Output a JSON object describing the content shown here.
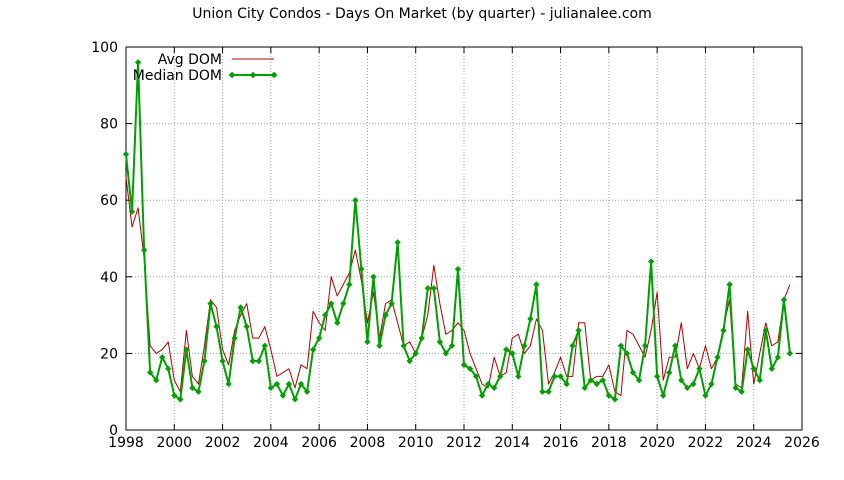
{
  "chart_data": {
    "type": "line",
    "title": "Union City Condos - Days On Market (by quarter) - julianalee.com",
    "xlabel": "",
    "ylabel": "",
    "xlim": [
      1998,
      2026
    ],
    "ylim": [
      0,
      100
    ],
    "x_ticks": [
      "1998",
      "2000",
      "2002",
      "2004",
      "2006",
      "2008",
      "2010",
      "2012",
      "2014",
      "2016",
      "2018",
      "2020",
      "2022",
      "2024",
      "2026"
    ],
    "y_ticks": [
      "0",
      "20",
      "40",
      "60",
      "80",
      "100"
    ],
    "grid": true,
    "legend_position": "top-left",
    "series": [
      {
        "name": "Avg DOM",
        "color": "#b00000",
        "marker": "none",
        "values": [
          [
            1998.0,
            66
          ],
          [
            1998.25,
            53
          ],
          [
            1998.5,
            58
          ],
          [
            1998.75,
            45
          ],
          [
            1999.0,
            22
          ],
          [
            1999.25,
            20
          ],
          [
            1999.5,
            21
          ],
          [
            1999.75,
            23
          ],
          [
            2000.0,
            13
          ],
          [
            2000.25,
            10
          ],
          [
            2000.5,
            26
          ],
          [
            2000.75,
            14
          ],
          [
            2001.0,
            12
          ],
          [
            2001.25,
            22
          ],
          [
            2001.5,
            34
          ],
          [
            2001.75,
            32
          ],
          [
            2002.0,
            21
          ],
          [
            2002.25,
            17
          ],
          [
            2002.5,
            26
          ],
          [
            2002.75,
            30
          ],
          [
            2003.0,
            33
          ],
          [
            2003.25,
            24
          ],
          [
            2003.5,
            24
          ],
          [
            2003.75,
            27
          ],
          [
            2004.0,
            21
          ],
          [
            2004.25,
            14
          ],
          [
            2004.5,
            15
          ],
          [
            2004.75,
            16
          ],
          [
            2005.0,
            11
          ],
          [
            2005.25,
            17
          ],
          [
            2005.5,
            16
          ],
          [
            2005.75,
            31
          ],
          [
            2006.0,
            28
          ],
          [
            2006.25,
            26
          ],
          [
            2006.5,
            40
          ],
          [
            2006.75,
            35
          ],
          [
            2007.0,
            38
          ],
          [
            2007.25,
            41
          ],
          [
            2007.5,
            47
          ],
          [
            2007.75,
            39
          ],
          [
            2008.0,
            28
          ],
          [
            2008.25,
            36
          ],
          [
            2008.5,
            24
          ],
          [
            2008.75,
            33
          ],
          [
            2009.0,
            34
          ],
          [
            2009.25,
            28
          ],
          [
            2009.5,
            22
          ],
          [
            2009.75,
            23
          ],
          [
            2010.0,
            20
          ],
          [
            2010.25,
            24
          ],
          [
            2010.5,
            30
          ],
          [
            2010.75,
            43
          ],
          [
            2011.0,
            33
          ],
          [
            2011.25,
            25
          ],
          [
            2011.5,
            26
          ],
          [
            2011.75,
            28
          ],
          [
            2012.0,
            26
          ],
          [
            2012.25,
            20
          ],
          [
            2012.5,
            16
          ],
          [
            2012.75,
            12
          ],
          [
            2013.0,
            11
          ],
          [
            2013.25,
            19
          ],
          [
            2013.5,
            14
          ],
          [
            2013.75,
            15
          ],
          [
            2014.0,
            24
          ],
          [
            2014.25,
            25
          ],
          [
            2014.5,
            20
          ],
          [
            2014.75,
            22
          ],
          [
            2015.0,
            29
          ],
          [
            2015.25,
            26
          ],
          [
            2015.5,
            12
          ],
          [
            2015.75,
            15
          ],
          [
            2016.0,
            19
          ],
          [
            2016.25,
            14
          ],
          [
            2016.5,
            14
          ],
          [
            2016.75,
            28
          ],
          [
            2017.0,
            28
          ],
          [
            2017.25,
            13
          ],
          [
            2017.5,
            14
          ],
          [
            2017.75,
            14
          ],
          [
            2018.0,
            17
          ],
          [
            2018.25,
            10
          ],
          [
            2018.5,
            9
          ],
          [
            2018.75,
            26
          ],
          [
            2019.0,
            25
          ],
          [
            2019.25,
            22
          ],
          [
            2019.5,
            19
          ],
          [
            2019.75,
            26
          ],
          [
            2020.0,
            36
          ],
          [
            2020.25,
            13
          ],
          [
            2020.5,
            19
          ],
          [
            2020.75,
            19
          ],
          [
            2021.0,
            28
          ],
          [
            2021.25,
            16
          ],
          [
            2021.5,
            20
          ],
          [
            2021.75,
            16
          ],
          [
            2022.0,
            22
          ],
          [
            2022.25,
            16
          ],
          [
            2022.5,
            19
          ],
          [
            2022.75,
            27
          ],
          [
            2023.0,
            34
          ],
          [
            2023.25,
            12
          ],
          [
            2023.5,
            11
          ],
          [
            2023.75,
            31
          ],
          [
            2024.0,
            12
          ],
          [
            2024.25,
            20
          ],
          [
            2024.5,
            28
          ],
          [
            2024.75,
            22
          ],
          [
            2025.0,
            23
          ],
          [
            2025.25,
            34
          ],
          [
            2025.5,
            38
          ]
        ]
      },
      {
        "name": "Median DOM",
        "color": "#00a000",
        "marker": "diamond",
        "values": [
          [
            1998.0,
            72
          ],
          [
            1998.25,
            57
          ],
          [
            1998.5,
            96
          ],
          [
            1998.75,
            47
          ],
          [
            1999.0,
            15
          ],
          [
            1999.25,
            13
          ],
          [
            1999.5,
            19
          ],
          [
            1999.75,
            16
          ],
          [
            2000.0,
            9
          ],
          [
            2000.25,
            8
          ],
          [
            2000.5,
            21
          ],
          [
            2000.75,
            11
          ],
          [
            2001.0,
            10
          ],
          [
            2001.25,
            18
          ],
          [
            2001.5,
            33
          ],
          [
            2001.75,
            27
          ],
          [
            2002.0,
            18
          ],
          [
            2002.25,
            12
          ],
          [
            2002.5,
            24
          ],
          [
            2002.75,
            32
          ],
          [
            2003.0,
            27
          ],
          [
            2003.25,
            18
          ],
          [
            2003.5,
            18
          ],
          [
            2003.75,
            22
          ],
          [
            2004.0,
            11
          ],
          [
            2004.25,
            12
          ],
          [
            2004.5,
            9
          ],
          [
            2004.75,
            12
          ],
          [
            2005.0,
            8
          ],
          [
            2005.25,
            12
          ],
          [
            2005.5,
            10
          ],
          [
            2005.75,
            21
          ],
          [
            2006.0,
            24
          ],
          [
            2006.25,
            30
          ],
          [
            2006.5,
            33
          ],
          [
            2006.75,
            28
          ],
          [
            2007.0,
            33
          ],
          [
            2007.25,
            38
          ],
          [
            2007.5,
            60
          ],
          [
            2007.75,
            42
          ],
          [
            2008.0,
            23
          ],
          [
            2008.25,
            40
          ],
          [
            2008.5,
            22
          ],
          [
            2008.75,
            30
          ],
          [
            2009.0,
            33
          ],
          [
            2009.25,
            49
          ],
          [
            2009.5,
            22
          ],
          [
            2009.75,
            18
          ],
          [
            2010.0,
            20
          ],
          [
            2010.25,
            24
          ],
          [
            2010.5,
            37
          ],
          [
            2010.75,
            37
          ],
          [
            2011.0,
            23
          ],
          [
            2011.25,
            20
          ],
          [
            2011.5,
            22
          ],
          [
            2011.75,
            42
          ],
          [
            2012.0,
            17
          ],
          [
            2012.25,
            16
          ],
          [
            2012.5,
            14
          ],
          [
            2012.75,
            9
          ],
          [
            2013.0,
            12
          ],
          [
            2013.25,
            11
          ],
          [
            2013.5,
            14
          ],
          [
            2013.75,
            21
          ],
          [
            2014.0,
            20
          ],
          [
            2014.25,
            14
          ],
          [
            2014.5,
            22
          ],
          [
            2014.75,
            29
          ],
          [
            2015.0,
            38
          ],
          [
            2015.25,
            10
          ],
          [
            2015.5,
            10
          ],
          [
            2015.75,
            14
          ],
          [
            2016.0,
            14
          ],
          [
            2016.25,
            12
          ],
          [
            2016.5,
            22
          ],
          [
            2016.75,
            26
          ],
          [
            2017.0,
            11
          ],
          [
            2017.25,
            13
          ],
          [
            2017.5,
            12
          ],
          [
            2017.75,
            13
          ],
          [
            2018.0,
            9
          ],
          [
            2018.25,
            8
          ],
          [
            2018.5,
            22
          ],
          [
            2018.75,
            20
          ],
          [
            2019.0,
            15
          ],
          [
            2019.25,
            13
          ],
          [
            2019.5,
            22
          ],
          [
            2019.75,
            44
          ],
          [
            2020.0,
            14
          ],
          [
            2020.25,
            9
          ],
          [
            2020.5,
            15
          ],
          [
            2020.75,
            22
          ],
          [
            2021.0,
            13
          ],
          [
            2021.25,
            11
          ],
          [
            2021.5,
            12
          ],
          [
            2021.75,
            16
          ],
          [
            2022.0,
            9
          ],
          [
            2022.25,
            12
          ],
          [
            2022.5,
            19
          ],
          [
            2022.75,
            26
          ],
          [
            2023.0,
            38
          ],
          [
            2023.25,
            11
          ],
          [
            2023.5,
            10
          ],
          [
            2023.75,
            21
          ],
          [
            2024.0,
            16
          ],
          [
            2024.25,
            13
          ],
          [
            2024.5,
            26
          ],
          [
            2024.75,
            16
          ],
          [
            2025.0,
            19
          ],
          [
            2025.25,
            34
          ],
          [
            2025.5,
            20
          ]
        ]
      }
    ]
  }
}
